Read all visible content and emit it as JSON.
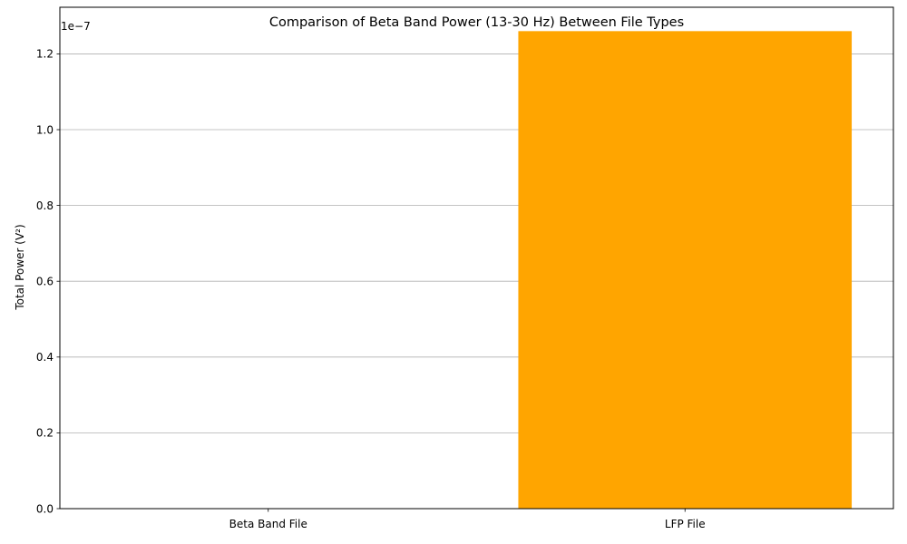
{
  "chart_data": {
    "type": "bar",
    "title": "Comparison of Beta Band Power (13-30 Hz) Between File Types",
    "xlabel": "",
    "ylabel": "Total Power (V²)",
    "offset_label": "1e−7",
    "categories": [
      "Beta Band File",
      "LFP File"
    ],
    "series": [
      {
        "values": [
          0.0,
          1.26e-07
        ]
      }
    ],
    "bar_colors": [
      "#1f77b4",
      "#ffa500"
    ],
    "ylim": [
      0,
      1.323e-07
    ],
    "yticks": [
      0,
      2e-08,
      4e-08,
      6e-08,
      8e-08,
      1e-07,
      1.2e-07
    ],
    "ytick_labels": [
      "0.0",
      "0.2",
      "0.4",
      "0.6",
      "0.8",
      "1.0",
      "1.2"
    ],
    "grid": {
      "y": true,
      "x": false,
      "color": "#b0b0b0"
    }
  }
}
